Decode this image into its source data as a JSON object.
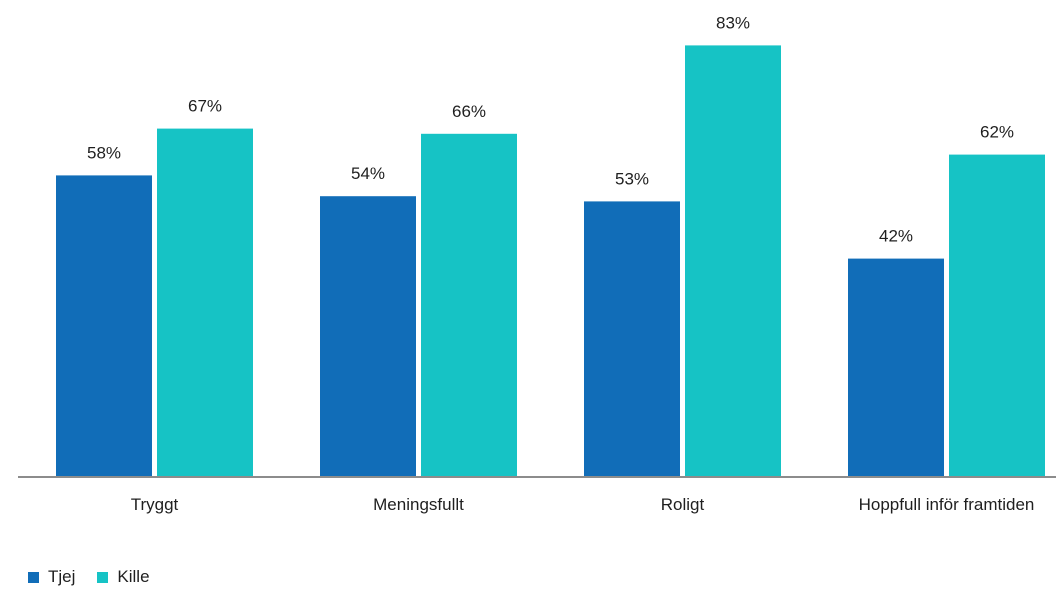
{
  "chart_data": {
    "type": "bar",
    "categories": [
      "Tryggt",
      "Meningsfullt",
      "Roligt",
      "Hoppfull inför framtiden"
    ],
    "series": [
      {
        "name": "Tjej",
        "values": [
          58,
          54,
          53,
          42
        ],
        "labels": [
          "58%",
          "54%",
          "53%",
          "42%"
        ],
        "color": "#116db8"
      },
      {
        "name": "Kille",
        "values": [
          67,
          66,
          83,
          62
        ],
        "labels": [
          "67%",
          "66%",
          "83%",
          "62%"
        ],
        "color": "#16c3c5"
      }
    ],
    "ylim": [
      0,
      100
    ],
    "grid": false,
    "legend_position": "bottom-left",
    "axis_color": "#8c8c8c"
  }
}
